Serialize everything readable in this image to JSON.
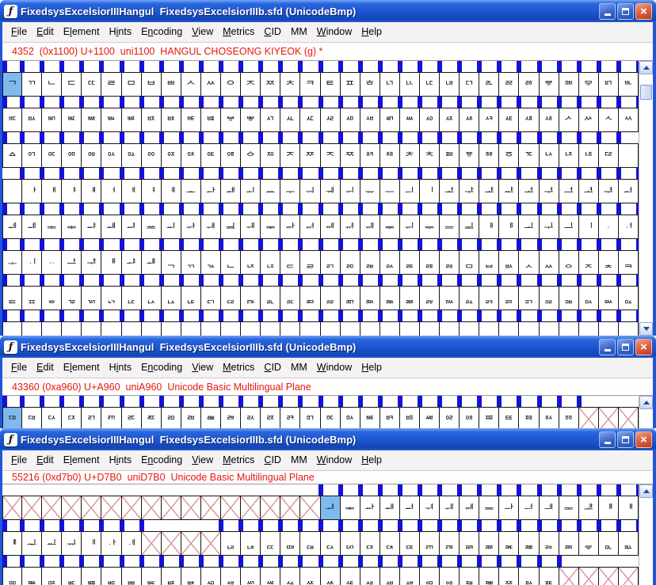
{
  "shared": {
    "icon_glyph": "ƒ",
    "close_glyph": "×",
    "title": "FixedsysExcelsiorIIIHangul  FixedsysExcelsiorIIIb.sfd (UnicodeBmp)",
    "menu": [
      {
        "label": "File",
        "u": 0
      },
      {
        "label": "Edit",
        "u": 0
      },
      {
        "label": "Element",
        "u": 1
      },
      {
        "label": "Hints",
        "u": 1
      },
      {
        "label": "Encoding",
        "u": 1
      },
      {
        "label": "View",
        "u": 0
      },
      {
        "label": "Metrics",
        "u": 0
      },
      {
        "label": "CID",
        "u": 0
      },
      {
        "label": "MM",
        "u": -1
      },
      {
        "label": "Window",
        "u": 0
      },
      {
        "label": "Help",
        "u": 0
      }
    ]
  },
  "windows": [
    {
      "status": "4352  (0x1100) U+1100  uni1100  HANGUL CHOSEONG KIYEOK (g) *",
      "grid": {
        "start": "1100",
        "cols": 32,
        "rows": 8,
        "selected": "1100",
        "blank": [
          "115F",
          "1160"
        ],
        "missing": []
      }
    },
    {
      "status": "43360 (0xa960) U+A960  uniA960  Unicode Basic Multilingual Plane",
      "grid": {
        "start": "A960",
        "cols": 32,
        "rows": 1,
        "selected": "A960",
        "blank": [],
        "missing": [
          [
            "A97D",
            "A97F"
          ]
        ]
      }
    },
    {
      "status": "55216 (0xd7b0) U+D7B0  uniD7B0  Unicode Basic Multilingual Plane",
      "grid": {
        "start": "D7A0",
        "cols": 32,
        "rows": 3,
        "selected": "D7B0",
        "blank": [],
        "missing": [
          [
            "D7A0",
            "D7AF"
          ],
          [
            "D7C7",
            "D7CA"
          ],
          [
            "D7FC",
            "D7FF"
          ]
        ]
      }
    }
  ],
  "colors": {
    "titlebar_blue": "#2a63d8",
    "window_border": "#2256d8",
    "menu_bg": "#f4f2f3",
    "status_text_red": "#e8170d",
    "grid_line": "#161616",
    "advance_bar_blue": "#1212d8",
    "selected_cell_blue": "#7fbaef",
    "missing_cross_pink": "#d89595",
    "close_button_red": "#d9542f",
    "scroll_arrow_blue": "#274a9e"
  }
}
